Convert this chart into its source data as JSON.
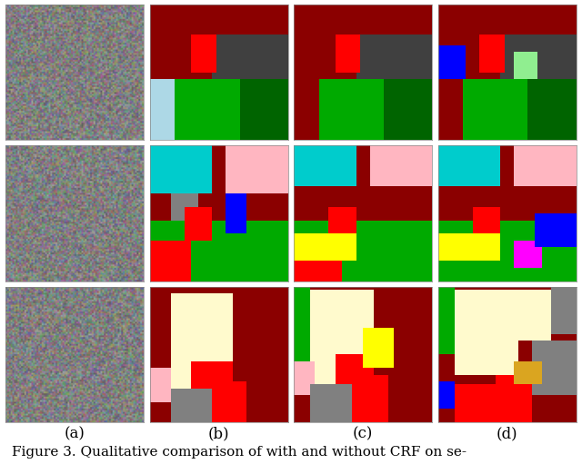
{
  "title": "Figure 3. Qualitative comparison of with and without CRF on se-",
  "col_labels": [
    "(a)",
    "(b)",
    "(c)",
    "(d)"
  ],
  "bg_color": "#ffffff",
  "figure_caption_fontsize": 11,
  "col_label_fontsize": 12,
  "n_rows": 3,
  "n_cols": 4,
  "row_segs": [
    {
      "photo_color": "#808080",
      "b_segs": [
        {
          "region": [
            0.0,
            0.0,
            1.0,
            0.22
          ],
          "color": "#8b0000"
        },
        {
          "region": [
            0.0,
            0.22,
            0.45,
            0.55
          ],
          "color": "#8b0000"
        },
        {
          "region": [
            0.45,
            0.22,
            1.0,
            0.55
          ],
          "color": "#404040"
        },
        {
          "region": [
            0.0,
            0.55,
            0.18,
            1.0
          ],
          "color": "#add8e6"
        },
        {
          "region": [
            0.18,
            0.55,
            0.65,
            1.0
          ],
          "color": "#00aa00"
        },
        {
          "region": [
            0.65,
            0.55,
            1.0,
            1.0
          ],
          "color": "#006400"
        },
        {
          "region": [
            0.3,
            0.22,
            0.48,
            0.5
          ],
          "color": "#ff0000"
        }
      ],
      "c_segs": [
        {
          "region": [
            0.0,
            0.0,
            1.0,
            0.22
          ],
          "color": "#8b0000"
        },
        {
          "region": [
            0.0,
            0.22,
            0.45,
            0.55
          ],
          "color": "#8b0000"
        },
        {
          "region": [
            0.45,
            0.22,
            1.0,
            0.55
          ],
          "color": "#404040"
        },
        {
          "region": [
            0.18,
            0.55,
            0.65,
            1.0
          ],
          "color": "#00aa00"
        },
        {
          "region": [
            0.65,
            0.55,
            1.0,
            1.0
          ],
          "color": "#006400"
        },
        {
          "region": [
            0.3,
            0.22,
            0.48,
            0.5
          ],
          "color": "#ff0000"
        }
      ],
      "d_segs": [
        {
          "region": [
            0.0,
            0.0,
            1.0,
            0.22
          ],
          "color": "#8b0000"
        },
        {
          "region": [
            0.0,
            0.22,
            0.45,
            0.55
          ],
          "color": "#8b0000"
        },
        {
          "region": [
            0.45,
            0.22,
            1.0,
            0.55
          ],
          "color": "#404040"
        },
        {
          "region": [
            0.18,
            0.55,
            0.65,
            1.0
          ],
          "color": "#00aa00"
        },
        {
          "region": [
            0.65,
            0.55,
            1.0,
            1.0
          ],
          "color": "#006400"
        },
        {
          "region": [
            0.3,
            0.22,
            0.48,
            0.5
          ],
          "color": "#ff0000"
        },
        {
          "region": [
            0.0,
            0.3,
            0.2,
            0.55
          ],
          "color": "#0000ff"
        },
        {
          "region": [
            0.55,
            0.35,
            0.72,
            0.55
          ],
          "color": "#90ee90"
        }
      ]
    },
    {
      "photo_color": "#a09070",
      "b_segs": [
        {
          "region": [
            0.0,
            0.0,
            1.0,
            0.55
          ],
          "color": "#8b0000"
        },
        {
          "region": [
            0.0,
            0.55,
            1.0,
            1.0
          ],
          "color": "#00aa00"
        },
        {
          "region": [
            0.0,
            0.0,
            0.45,
            0.35
          ],
          "color": "#00cccc"
        },
        {
          "region": [
            0.55,
            0.0,
            1.0,
            0.35
          ],
          "color": "#ffb6c1"
        },
        {
          "region": [
            0.15,
            0.35,
            0.35,
            0.55
          ],
          "color": "#808080"
        },
        {
          "region": [
            0.25,
            0.45,
            0.45,
            0.7
          ],
          "color": "#ff0000"
        },
        {
          "region": [
            0.55,
            0.35,
            0.7,
            0.65
          ],
          "color": "#0000ff"
        },
        {
          "region": [
            0.0,
            0.7,
            0.3,
            1.0
          ],
          "color": "#ff0000"
        }
      ],
      "c_segs": [
        {
          "region": [
            0.0,
            0.0,
            1.0,
            0.55
          ],
          "color": "#8b0000"
        },
        {
          "region": [
            0.0,
            0.55,
            1.0,
            1.0
          ],
          "color": "#00aa00"
        },
        {
          "region": [
            0.0,
            0.0,
            0.45,
            0.3
          ],
          "color": "#00cccc"
        },
        {
          "region": [
            0.55,
            0.0,
            1.0,
            0.3
          ],
          "color": "#ffb6c1"
        },
        {
          "region": [
            0.25,
            0.45,
            0.45,
            0.65
          ],
          "color": "#ff0000"
        },
        {
          "region": [
            0.0,
            0.65,
            0.45,
            0.85
          ],
          "color": "#ffff00"
        },
        {
          "region": [
            0.0,
            0.85,
            0.35,
            1.0
          ],
          "color": "#ff0000"
        }
      ],
      "d_segs": [
        {
          "region": [
            0.0,
            0.0,
            1.0,
            0.55
          ],
          "color": "#8b0000"
        },
        {
          "region": [
            0.0,
            0.55,
            1.0,
            1.0
          ],
          "color": "#00aa00"
        },
        {
          "region": [
            0.0,
            0.0,
            0.45,
            0.3
          ],
          "color": "#00cccc"
        },
        {
          "region": [
            0.55,
            0.0,
            1.0,
            0.3
          ],
          "color": "#ffb6c1"
        },
        {
          "region": [
            0.25,
            0.45,
            0.45,
            0.65
          ],
          "color": "#ff0000"
        },
        {
          "region": [
            0.0,
            0.65,
            0.45,
            0.85
          ],
          "color": "#ffff00"
        },
        {
          "region": [
            0.55,
            0.7,
            0.75,
            0.9
          ],
          "color": "#ff00ff"
        },
        {
          "region": [
            0.7,
            0.5,
            1.0,
            0.75
          ],
          "color": "#0000ff"
        }
      ]
    },
    {
      "photo_color": "#606060",
      "b_segs": [
        {
          "region": [
            0.0,
            0.0,
            1.0,
            1.0
          ],
          "color": "#8b0000"
        },
        {
          "region": [
            0.15,
            0.05,
            0.6,
            0.75
          ],
          "color": "#fffacd"
        },
        {
          "region": [
            0.0,
            0.6,
            0.15,
            0.85
          ],
          "color": "#ffb6c1"
        },
        {
          "region": [
            0.15,
            0.75,
            0.45,
            1.0
          ],
          "color": "#808080"
        },
        {
          "region": [
            0.45,
            0.7,
            0.7,
            1.0
          ],
          "color": "#ff0000"
        },
        {
          "region": [
            0.3,
            0.55,
            0.6,
            0.75
          ],
          "color": "#ff0000"
        }
      ],
      "c_segs": [
        {
          "region": [
            0.0,
            0.0,
            1.0,
            1.0
          ],
          "color": "#8b0000"
        },
        {
          "region": [
            0.12,
            0.02,
            0.58,
            0.72
          ],
          "color": "#fffacd"
        },
        {
          "region": [
            0.0,
            0.55,
            0.15,
            0.8
          ],
          "color": "#ffb6c1"
        },
        {
          "region": [
            0.12,
            0.72,
            0.42,
            1.0
          ],
          "color": "#808080"
        },
        {
          "region": [
            0.42,
            0.65,
            0.68,
            1.0
          ],
          "color": "#ff0000"
        },
        {
          "region": [
            0.3,
            0.5,
            0.58,
            0.72
          ],
          "color": "#ff0000"
        },
        {
          "region": [
            0.0,
            0.0,
            0.12,
            0.55
          ],
          "color": "#00aa00"
        },
        {
          "region": [
            0.5,
            0.3,
            0.72,
            0.6
          ],
          "color": "#ffff00"
        }
      ],
      "d_segs": [
        {
          "region": [
            0.0,
            0.0,
            1.0,
            1.0
          ],
          "color": "#8b0000"
        },
        {
          "region": [
            0.12,
            0.02,
            0.58,
            0.65
          ],
          "color": "#fffacd"
        },
        {
          "region": [
            0.58,
            0.02,
            0.82,
            0.4
          ],
          "color": "#fffacd"
        },
        {
          "region": [
            0.42,
            0.65,
            0.68,
            1.0
          ],
          "color": "#ff0000"
        },
        {
          "region": [
            0.12,
            0.72,
            0.42,
            1.0
          ],
          "color": "#ff0000"
        },
        {
          "region": [
            0.68,
            0.4,
            1.0,
            0.8
          ],
          "color": "#808080"
        },
        {
          "region": [
            0.0,
            0.0,
            0.12,
            0.5
          ],
          "color": "#00aa00"
        },
        {
          "region": [
            0.55,
            0.55,
            0.75,
            0.72
          ],
          "color": "#daa520"
        },
        {
          "region": [
            0.75,
            0.55,
            1.0,
            0.8
          ],
          "color": "#808080"
        },
        {
          "region": [
            0.0,
            0.7,
            0.12,
            0.9
          ],
          "color": "#0000ff"
        },
        {
          "region": [
            0.82,
            0.0,
            1.0,
            0.35
          ],
          "color": "#808080"
        }
      ]
    }
  ]
}
